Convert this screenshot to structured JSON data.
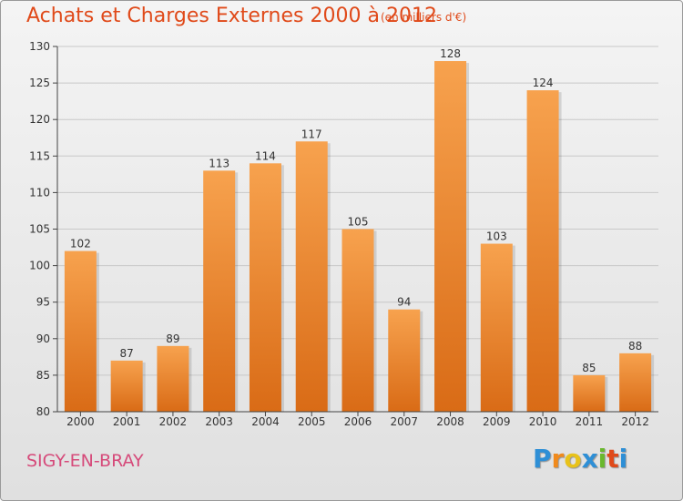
{
  "chart_data": {
    "type": "bar",
    "title": "Achats et Charges Externes 2000 à 2012",
    "subtitle": "(en milliers d'€)",
    "categories": [
      "2000",
      "2001",
      "2002",
      "2003",
      "2004",
      "2005",
      "2006",
      "2007",
      "2008",
      "2009",
      "2010",
      "2011",
      "2012"
    ],
    "values": [
      102,
      87,
      89,
      113,
      114,
      117,
      105,
      94,
      128,
      103,
      124,
      85,
      88
    ],
    "ylim": [
      80,
      130
    ],
    "yticks": [
      80,
      85,
      90,
      95,
      100,
      105,
      110,
      115,
      120,
      125,
      130
    ],
    "grid": true,
    "bar_color": "#f0883a"
  },
  "commune": "SIGY-EN-BRAY",
  "logo": {
    "letters": [
      "P",
      "r",
      "o",
      "x",
      "i",
      "t",
      "i"
    ],
    "colors": [
      "#2e8fd6",
      "#f08a1c",
      "#e8c21a",
      "#2e8fd6",
      "#6ab82e",
      "#e04a1a",
      "#2e8fd6"
    ]
  }
}
